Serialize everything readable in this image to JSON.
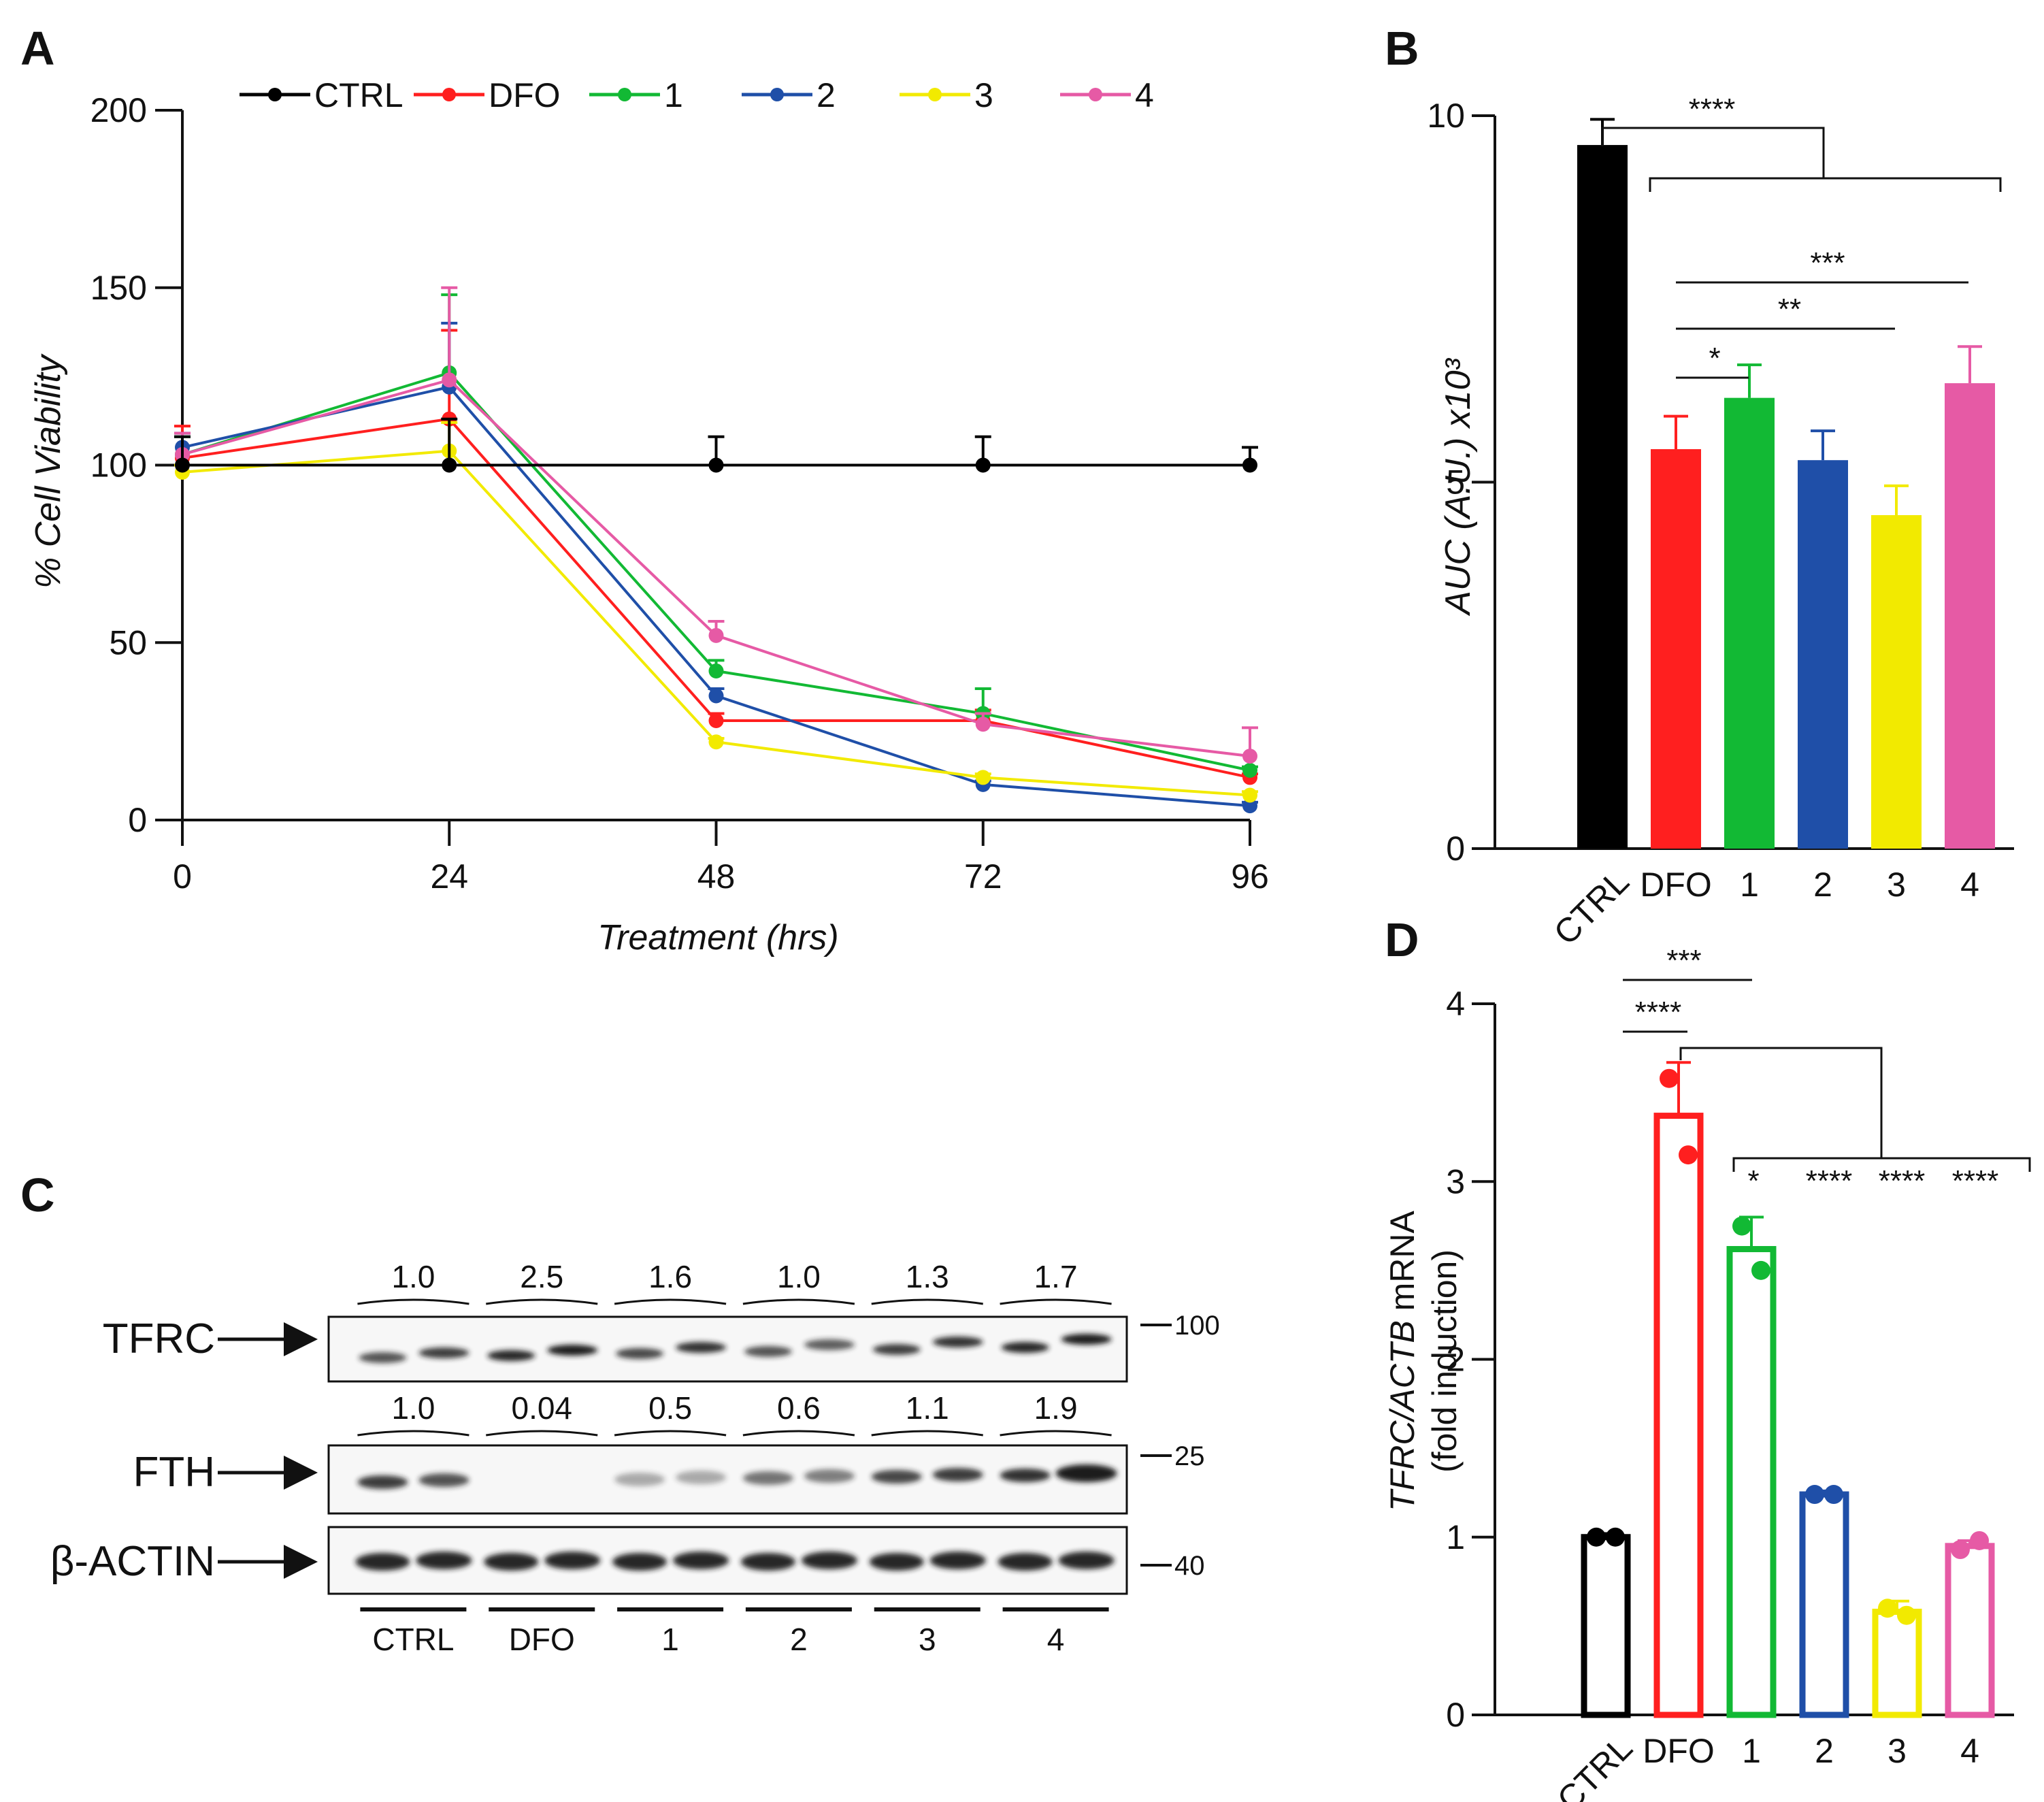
{
  "colors": {
    "CTRL": "#000000",
    "DFO": "#ff1f1f",
    "1": "#12b934",
    "2": "#1f4fa8",
    "3": "#f2ea00",
    "4": "#e65aa5"
  },
  "chart_data": [
    {
      "panel": "A",
      "type": "line",
      "xlabel": "Treatment (hrs)",
      "ylabel": "% Cell Viability",
      "x": [
        0,
        24,
        48,
        72,
        96
      ],
      "xlim": [
        0,
        96
      ],
      "ylim": [
        0,
        200
      ],
      "xticks": [
        "0",
        "24",
        "48",
        "72",
        "96"
      ],
      "yticks": [
        "0",
        "50",
        "100",
        "150",
        "200"
      ],
      "legend": [
        "CTRL",
        "DFO",
        "1",
        "2",
        "3",
        "4"
      ],
      "series": [
        {
          "name": "CTRL",
          "values": [
            100,
            100,
            100,
            100,
            100
          ],
          "error": [
            8,
            13,
            8,
            8,
            5
          ]
        },
        {
          "name": "DFO",
          "values": [
            102,
            113,
            28,
            28,
            12
          ],
          "error": [
            9,
            25,
            2,
            3,
            1
          ]
        },
        {
          "name": "1",
          "values": [
            103,
            126,
            42,
            30,
            14
          ],
          "error": [
            5,
            22,
            3,
            7,
            1
          ]
        },
        {
          "name": "2",
          "values": [
            105,
            122,
            35,
            10,
            4
          ],
          "error": [
            4,
            18,
            2,
            1,
            1
          ]
        },
        {
          "name": "3",
          "values": [
            98,
            104,
            22,
            12,
            7
          ],
          "error": [
            2,
            8,
            1,
            1,
            1
          ]
        },
        {
          "name": "4",
          "values": [
            103,
            124,
            52,
            27,
            18
          ],
          "error": [
            6,
            26,
            4,
            3,
            8
          ]
        }
      ]
    },
    {
      "panel": "B",
      "type": "bar",
      "ylabel": "AUC (A.U.) x10³",
      "categories": [
        "CTRL",
        "DFO",
        "1",
        "2",
        "3",
        "4"
      ],
      "values": [
        9.6,
        5.45,
        6.15,
        5.3,
        4.55,
        6.35
      ],
      "error": [
        0.35,
        0.45,
        0.45,
        0.4,
        0.4,
        0.5
      ],
      "ylim": [
        0,
        10
      ],
      "yticks": [
        "0",
        "5",
        "10"
      ],
      "significance": [
        {
          "label": "****",
          "groups": "CTRL vs DFO,1,2,3,4"
        },
        {
          "label": "***",
          "groups": "DFO vs 4"
        },
        {
          "label": "**",
          "groups": "DFO vs 3"
        },
        {
          "label": "*",
          "groups": "DFO vs 1"
        }
      ]
    },
    {
      "panel": "D",
      "type": "bar",
      "ylabel_italic": "TFRC/ACTB",
      "ylabel_rest": "mRNA",
      "ylabel_line2": "(fold induction)",
      "categories": [
        "CTRL",
        "DFO",
        "1",
        "2",
        "3",
        "4"
      ],
      "values": [
        1.0,
        3.37,
        2.62,
        1.24,
        0.58,
        0.95
      ],
      "error": [
        0.02,
        0.3,
        0.18,
        0.02,
        0.06,
        0.03
      ],
      "points": [
        [
          1.0,
          1.0
        ],
        [
          3.58,
          3.15
        ],
        [
          2.75,
          2.5
        ],
        [
          1.24,
          1.24
        ],
        [
          0.6,
          0.56
        ],
        [
          0.93,
          0.98
        ]
      ],
      "ylim": [
        0,
        4
      ],
      "yticks": [
        "0",
        "1",
        "2",
        "3",
        "4"
      ],
      "significance": [
        {
          "label": "***",
          "groups": "CTRL vs 1"
        },
        {
          "label": "****",
          "groups": "CTRL vs DFO"
        },
        {
          "label": "*",
          "groups": "DFO vs 1"
        },
        {
          "label": "****",
          "groups": "DFO vs 2"
        },
        {
          "label": "****",
          "groups": "DFO vs 3"
        },
        {
          "label": "****",
          "groups": "DFO vs 4"
        }
      ]
    }
  ],
  "panel_c": {
    "letter": "C",
    "groups": [
      "CTRL",
      "DFO",
      "1",
      "2",
      "3",
      "4"
    ],
    "tfrc": {
      "label": "TFRC",
      "values": [
        "1.0",
        "2.5",
        "1.6",
        "1.0",
        "1.3",
        "1.7"
      ],
      "marker": "100"
    },
    "fth": {
      "label": "FTH",
      "values": [
        "1.0",
        "0.04",
        "0.5",
        "0.6",
        "1.1",
        "1.9"
      ],
      "marker": "25"
    },
    "actin": {
      "label": "β-ACTIN",
      "marker": "40"
    }
  },
  "panel_letters": {
    "a": "A",
    "b": "B",
    "d": "D"
  }
}
